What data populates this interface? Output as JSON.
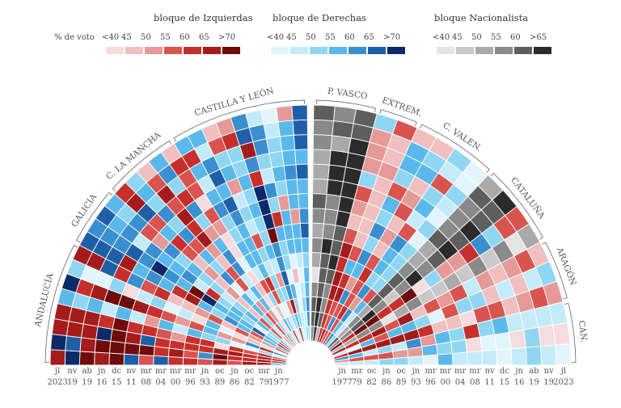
{
  "legend": {
    "vote_label": "% de voto",
    "blocks": [
      {
        "title": "bloque de Izquierdas",
        "ticks": [
          "<40",
          "45",
          "50",
          "55",
          "60",
          "65",
          ">70"
        ],
        "colors": [
          "#f6dcdc",
          "#f0c0c0",
          "#e59a98",
          "#d9534f",
          "#c62f2b",
          "#a31b1b",
          "#6e0b0b"
        ]
      },
      {
        "title": "bloque de Derechas",
        "ticks": [
          "<40",
          "45",
          "50",
          "55",
          "60",
          "65",
          ">70"
        ],
        "colors": [
          "#e3f5fc",
          "#c4ebf9",
          "#90d6f3",
          "#5ab9ea",
          "#3a8fd0",
          "#1f5fa8",
          "#0b2a6a"
        ]
      },
      {
        "title": "bloque Nacionalista",
        "ticks": [
          "<40",
          "45",
          "50",
          "55",
          "60",
          ">65"
        ],
        "colors": [
          "#e4e4e4",
          "#c9c9c9",
          "#aaaaaa",
          "#8a8a8a",
          "#5e5e5e",
          "#2b2b2b"
        ]
      }
    ]
  },
  "chart_data": {
    "type": "heatmap",
    "description_units": "% de voto",
    "regions": [
      "ANDALUCÍA",
      "GALICIA",
      "C. LA MANCHA",
      "CASTILLA Y LEÓN",
      "P. VASCO",
      "EXTREM.",
      "C. VALEN.",
      "CATALUÑA",
      "ARAGÓN",
      "CAN."
    ],
    "elections_left": [
      {
        "m": "jl",
        "y": "2023"
      },
      {
        "m": "nv",
        "y": "19"
      },
      {
        "m": "ab",
        "y": "19"
      },
      {
        "m": "jn",
        "y": "16"
      },
      {
        "m": "dc",
        "y": "15"
      },
      {
        "m": "nv",
        "y": "11"
      },
      {
        "m": "mr",
        "y": "08"
      },
      {
        "m": "mr",
        "y": "04"
      },
      {
        "m": "mr",
        "y": "00"
      },
      {
        "m": "mr",
        "y": "96"
      },
      {
        "m": "jn",
        "y": "93"
      },
      {
        "m": "oc",
        "y": "89"
      },
      {
        "m": "jn",
        "y": "86"
      },
      {
        "m": "oc",
        "y": "82"
      },
      {
        "m": "mr",
        "y": "79"
      },
      {
        "m": "jn",
        "y": "1977"
      }
    ],
    "elections_right": [
      {
        "m": "jn",
        "y": "1977"
      },
      {
        "m": "mr",
        "y": "79"
      },
      {
        "m": "oc",
        "y": "82"
      },
      {
        "m": "jn",
        "y": "86"
      },
      {
        "m": "oc",
        "y": "89"
      },
      {
        "m": "jn",
        "y": "93"
      },
      {
        "m": "mr",
        "y": "96"
      },
      {
        "m": "mr",
        "y": "00"
      },
      {
        "m": "mr",
        "y": "04"
      },
      {
        "m": "mr",
        "y": "08"
      },
      {
        "m": "nv",
        "y": "11"
      },
      {
        "m": "dc",
        "y": "15"
      },
      {
        "m": "jn",
        "y": "16"
      },
      {
        "m": "ab",
        "y": "19"
      },
      {
        "m": "nv",
        "y": "19"
      },
      {
        "m": "jl",
        "y": "2023"
      }
    ],
    "bands": [
      {
        "key": "ANDALUCÍA",
        "label": "ANDALUCÍA",
        "n": 8,
        "fan": "L",
        "tone": [
          [
            "R",
            4
          ],
          [
            "R",
            5
          ],
          [
            "R",
            5
          ],
          [
            "R",
            3
          ],
          [
            "B",
            2
          ],
          [
            "R",
            3
          ],
          [
            "B",
            1
          ],
          [
            "R",
            2
          ]
        ]
      },
      {
        "key": "GALICIA",
        "label": "GALICIA",
        "n": 4,
        "fan": "L",
        "tone": [
          [
            "B",
            4
          ],
          [
            "B",
            5
          ],
          [
            "B",
            4
          ],
          [
            "B",
            3
          ]
        ]
      },
      {
        "key": "CLM",
        "label": "C. LA MANCHA",
        "n": 5,
        "fan": "L",
        "tone": [
          [
            "R",
            2
          ],
          [
            "B",
            3
          ],
          [
            "R",
            2
          ],
          [
            "B",
            3
          ],
          [
            "R",
            1
          ]
        ]
      },
      {
        "key": "CYL",
        "label": "CASTILLA Y LEÓN",
        "n": 9,
        "fan": "L",
        "tone": [
          [
            "B",
            3
          ],
          [
            "B",
            4
          ],
          [
            "B",
            2
          ],
          [
            "B",
            3
          ],
          [
            "B",
            5
          ],
          [
            "B",
            3
          ],
          [
            "B",
            2
          ],
          [
            "B",
            3
          ],
          [
            "B",
            4
          ]
        ]
      },
      {
        "key": "PV",
        "label": "P. VASCO",
        "n": 3,
        "fan": "R",
        "tone": [
          [
            "N",
            3
          ],
          [
            "N",
            4
          ],
          [
            "N",
            5
          ]
        ]
      },
      {
        "key": "EXT",
        "label": "EXTREM.",
        "n": 2,
        "fan": "R",
        "tone": [
          [
            "R",
            3
          ],
          [
            "R",
            2
          ]
        ]
      },
      {
        "key": "CV",
        "label": "C. VALEN.",
        "n": 4,
        "fan": "R",
        "tone": [
          [
            "B",
            3
          ],
          [
            "R",
            2
          ],
          [
            "B",
            3
          ],
          [
            "B",
            2
          ]
        ]
      },
      {
        "key": "CAT",
        "label": "CATALUÑA",
        "n": 4,
        "fan": "R",
        "tone": [
          [
            "N",
            3
          ],
          [
            "N",
            4
          ],
          [
            "R",
            3
          ],
          [
            "N",
            2
          ]
        ]
      },
      {
        "key": "ARA",
        "label": "ARAGÓN",
        "n": 3,
        "fan": "R",
        "tone": [
          [
            "R",
            2
          ],
          [
            "B",
            2
          ],
          [
            "R",
            2
          ]
        ]
      },
      {
        "key": "CAN",
        "label": "CAN.",
        "n": 3,
        "fan": "R",
        "tone": [
          [
            "B",
            3
          ],
          [
            "R",
            1
          ],
          [
            "B",
            2
          ]
        ]
      }
    ]
  }
}
